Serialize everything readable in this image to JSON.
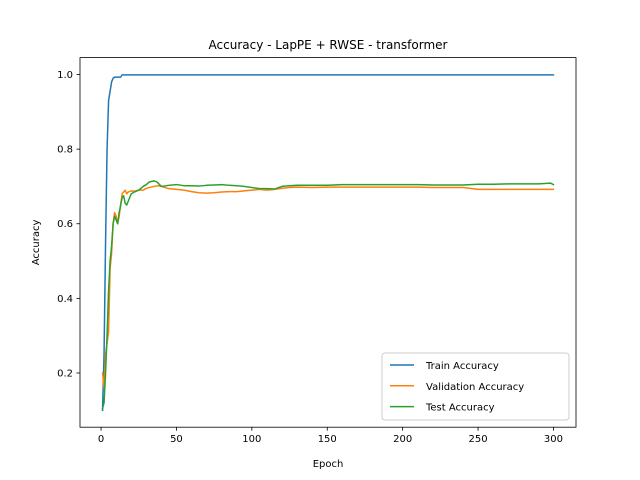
{
  "chart_data": {
    "type": "line",
    "title": "Accuracy - LapPE + RWSE - transformer",
    "xlabel": "Epoch",
    "ylabel": "Accuracy",
    "xlim": [
      -13.95,
      314.95
    ],
    "ylim": [
      0.0547,
      1.0453
    ],
    "xticks": [
      0,
      50,
      100,
      150,
      200,
      250,
      300
    ],
    "yticks": [
      0.2,
      0.4,
      0.6,
      0.8,
      1.0
    ],
    "ytick_labels": [
      "0.2",
      "0.4",
      "0.6",
      "0.8",
      "1.0"
    ],
    "grid": false,
    "legend_position": "lower right",
    "series": [
      {
        "name": "Train Accuracy",
        "color": "#1f77b4",
        "x": [
          1,
          2,
          3,
          4,
          5,
          6,
          7,
          8,
          9,
          10,
          12,
          13,
          14,
          15,
          20,
          30,
          50,
          100,
          150,
          200,
          250,
          300
        ],
        "y": [
          0.1,
          0.25,
          0.55,
          0.8,
          0.93,
          0.955,
          0.98,
          0.99,
          0.993,
          0.993,
          0.993,
          0.993,
          0.999,
          0.999,
          0.999,
          0.999,
          0.999,
          0.999,
          0.999,
          0.999,
          0.999,
          0.999
        ]
      },
      {
        "name": "Validation Accuracy",
        "color": "#ff7f0e",
        "x": [
          1,
          2,
          3,
          4,
          5,
          6,
          7,
          8,
          9,
          10,
          11,
          12,
          13,
          14,
          15,
          16,
          17,
          18,
          20,
          22,
          25,
          28,
          30,
          33,
          35,
          38,
          40,
          45,
          50,
          55,
          60,
          65,
          70,
          75,
          80,
          85,
          90,
          95,
          100,
          105,
          110,
          115,
          120,
          125,
          130,
          140,
          150,
          160,
          170,
          180,
          190,
          200,
          210,
          220,
          230,
          240,
          250,
          260,
          270,
          280,
          290,
          300
        ],
        "y": [
          0.2,
          0.16,
          0.25,
          0.28,
          0.31,
          0.48,
          0.52,
          0.6,
          0.63,
          0.62,
          0.6,
          0.62,
          0.65,
          0.68,
          0.685,
          0.69,
          0.68,
          0.685,
          0.688,
          0.687,
          0.69,
          0.69,
          0.695,
          0.698,
          0.7,
          0.702,
          0.7,
          0.694,
          0.692,
          0.69,
          0.686,
          0.683,
          0.682,
          0.683,
          0.685,
          0.686,
          0.686,
          0.688,
          0.69,
          0.692,
          0.69,
          0.692,
          0.695,
          0.697,
          0.698,
          0.697,
          0.698,
          0.698,
          0.698,
          0.698,
          0.698,
          0.698,
          0.698,
          0.697,
          0.697,
          0.697,
          0.692,
          0.692,
          0.692,
          0.692,
          0.692,
          0.692
        ]
      },
      {
        "name": "Test Accuracy",
        "color": "#2ca02c",
        "x": [
          1,
          2,
          3,
          4,
          5,
          6,
          7,
          8,
          9,
          10,
          11,
          12,
          13,
          14,
          15,
          16,
          17,
          18,
          20,
          22,
          25,
          28,
          30,
          32,
          35,
          37,
          40,
          45,
          50,
          55,
          60,
          65,
          70,
          75,
          80,
          85,
          90,
          95,
          100,
          105,
          110,
          115,
          120,
          125,
          130,
          140,
          150,
          160,
          170,
          180,
          190,
          200,
          210,
          220,
          230,
          240,
          250,
          260,
          270,
          280,
          290,
          298,
          300
        ],
        "y": [
          0.105,
          0.12,
          0.2,
          0.3,
          0.42,
          0.5,
          0.54,
          0.6,
          0.62,
          0.61,
          0.6,
          0.63,
          0.65,
          0.67,
          0.675,
          0.655,
          0.65,
          0.66,
          0.68,
          0.685,
          0.69,
          0.7,
          0.705,
          0.712,
          0.715,
          0.712,
          0.7,
          0.703,
          0.705,
          0.702,
          0.702,
          0.701,
          0.703,
          0.704,
          0.705,
          0.703,
          0.702,
          0.7,
          0.697,
          0.694,
          0.694,
          0.693,
          0.7,
          0.702,
          0.703,
          0.703,
          0.703,
          0.705,
          0.705,
          0.705,
          0.705,
          0.705,
          0.705,
          0.704,
          0.704,
          0.704,
          0.706,
          0.706,
          0.707,
          0.707,
          0.707,
          0.709,
          0.705
        ]
      }
    ]
  }
}
